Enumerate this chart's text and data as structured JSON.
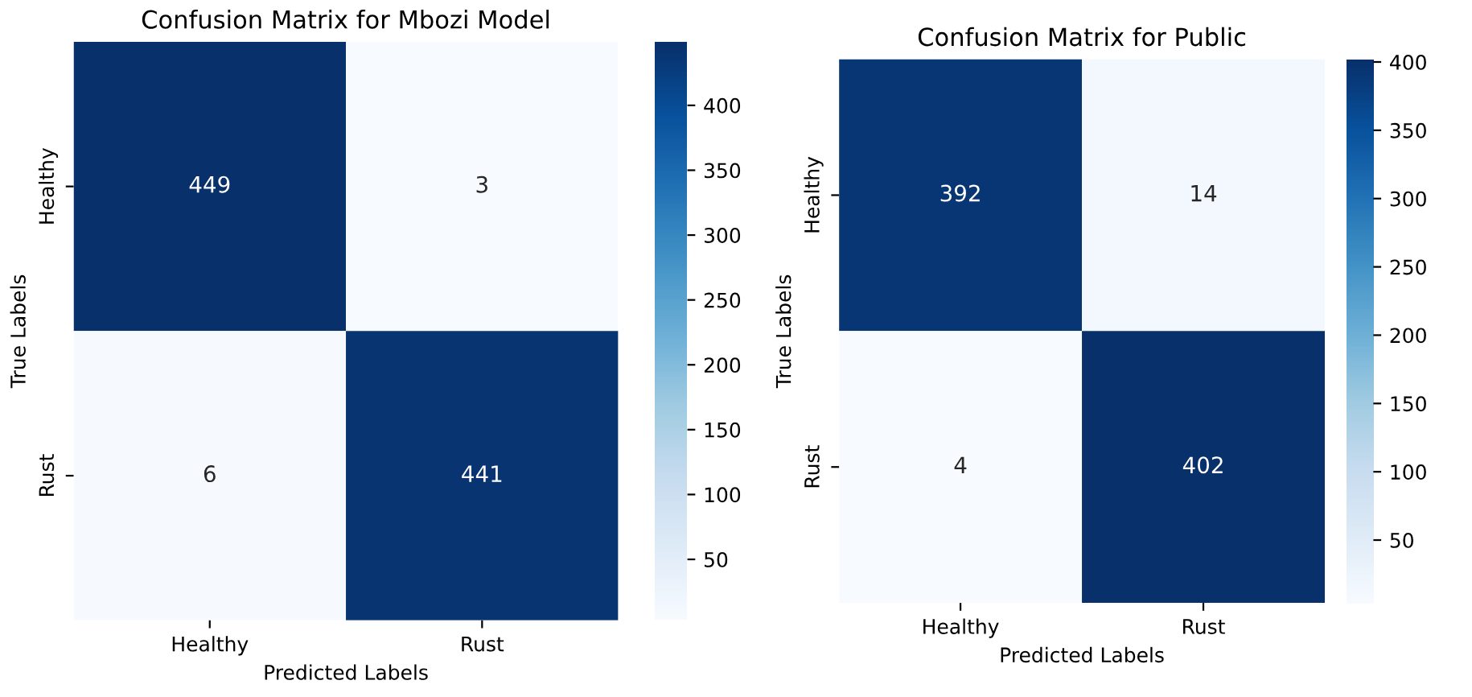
{
  "chart_data": [
    {
      "type": "heatmap",
      "title": "Confusion Matrix for Mbozi Model",
      "xlabel": "Predicted Labels",
      "ylabel": "True Labels",
      "categories": [
        "Healthy",
        "Rust"
      ],
      "y_categories": [
        "Healthy",
        "Rust"
      ],
      "cells": [
        [
          449,
          3
        ],
        [
          6,
          441
        ]
      ],
      "data_labels": true,
      "clim": [
        3,
        449
      ],
      "cticks": [
        50,
        100,
        150,
        200,
        250,
        300,
        350,
        400
      ]
    },
    {
      "type": "heatmap",
      "title": "Confusion Matrix for Public",
      "xlabel": "Predicted Labels",
      "ylabel": "True Labels",
      "categories": [
        "Healthy",
        "Rust"
      ],
      "y_categories": [
        "Healthy",
        "Rust"
      ],
      "cells": [
        [
          392,
          14
        ],
        [
          4,
          402
        ]
      ],
      "data_labels": true,
      "clim": [
        4,
        402
      ],
      "cticks": [
        50,
        100,
        150,
        200,
        250,
        300,
        350,
        400
      ]
    }
  ]
}
